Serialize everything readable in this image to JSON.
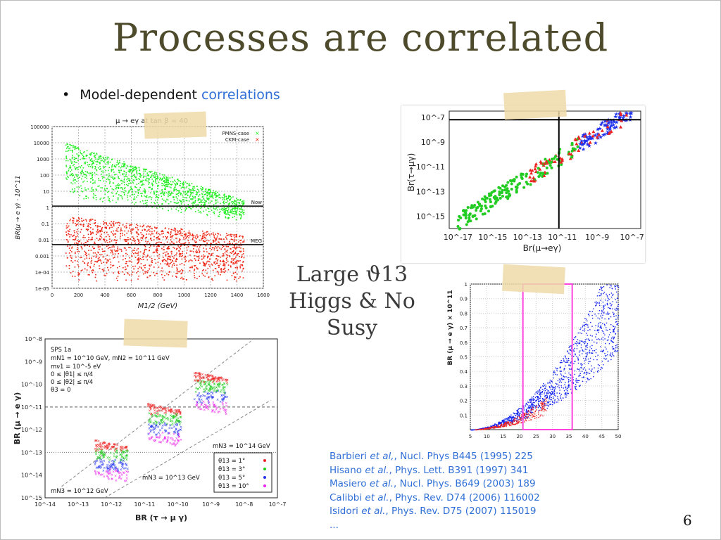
{
  "slide": {
    "title": "Processes are correlated",
    "bullet_label": "Model-dependent",
    "bullet_accent": "correlations",
    "center_line1": "Large ϑ13",
    "center_line2": "Higgs & No Susy",
    "page_number": "6",
    "references": [
      {
        "authors": "Barbieri",
        "etal": "et al,",
        "rest": ", Nucl. Phys B445 (1995) 225"
      },
      {
        "authors": "Hisano",
        "etal": "et al.",
        "rest": ", Phys. Lett. B391 (1997) 341"
      },
      {
        "authors": "Masiero",
        "etal": "et al.",
        "rest": ", Nucl. Phys. B649 (2003) 189"
      },
      {
        "authors": "Calibbi",
        "etal": "et al.",
        "rest": ",   Phys. Rev. D74 (2006) 116002"
      },
      {
        "authors": "Isidori",
        "etal": "et al.",
        "rest": ", Phys. Rev. D75 (2007) 115019"
      },
      {
        "authors": "...",
        "etal": "",
        "rest": ""
      }
    ]
  },
  "chart_data": [
    {
      "type": "scatter",
      "title": "μ → eγ at tan β = 40",
      "xlabel": "M1/2 (GeV)",
      "ylabel": "BR(μ → e γ) · 10^11",
      "xlim": [
        0,
        1600
      ],
      "x_ticks": [
        "0",
        "200",
        "400",
        "600",
        "800",
        "1000",
        "1200",
        "1400",
        "1600"
      ],
      "y_ticks": [
        "100000",
        "10000",
        "1000",
        "100",
        "10",
        "1",
        "0.1",
        "0.01",
        "0.001",
        "1e-04",
        "1e-05"
      ],
      "log_y": true,
      "legend": [
        "PMNS-case",
        "CKM-case"
      ],
      "hlines": [
        {
          "label": "Now",
          "value": 1.2
        },
        {
          "label": "MEG",
          "value": 0.005
        }
      ],
      "series": [
        {
          "name": "PMNS-case",
          "color": "#22ee22",
          "x_range": [
            100,
            1450
          ],
          "y_top": [
            10000,
            3
          ],
          "y_bottom": [
            5,
            0.15
          ]
        },
        {
          "name": "CKM-case",
          "color": "#ee2211",
          "x_range": [
            100,
            1450
          ],
          "y_top": [
            0.3,
            0.02
          ],
          "y_bottom": [
            3e-05,
            3e-05
          ]
        }
      ]
    },
    {
      "type": "scatter",
      "xlabel": "Br(μ→eγ)",
      "ylabel": "Br(τ→μγ)",
      "log_x": true,
      "log_y": true,
      "x_ticks": [
        "10^-17",
        "10^-15",
        "10^-13",
        "10^-11",
        "10^-9",
        "10^-7"
      ],
      "y_ticks": [
        "10^-7",
        "10^-9",
        "10^-11",
        "10^-13",
        "10^-15"
      ],
      "colors": [
        "#22cc22",
        "#ee2222",
        "#2233ee"
      ]
    },
    {
      "type": "scatter",
      "xlabel": "BR (τ → μ γ)",
      "ylabel": "BR (μ → e γ)",
      "log_x": true,
      "log_y": true,
      "x_ticks": [
        "10^-14",
        "10^-13",
        "10^-12",
        "10^-11",
        "10^-10",
        "10^-9",
        "10^-8",
        "10^-7"
      ],
      "y_ticks": [
        "10^-8",
        "10^-9",
        "10^-10",
        "10^-11",
        "10^-12",
        "10^-13",
        "10^-14",
        "10^-15"
      ],
      "annotations": [
        "SPS 1a",
        "mN1 = 10^10 GeV, mN2 = 10^11 GeV",
        "mν1 = 10^-5 eV",
        "0 ≤ |θ1| ≤ π/4",
        "0 ≤ |θ2| ≤ π/4",
        "θ3 = 0",
        "mN3 = 10^14 GeV",
        "mN3 = 10^13 GeV",
        "mN3 = 10^12 GeV"
      ],
      "legend": [
        {
          "name": "θ13 = 1°",
          "color": "#ee2222"
        },
        {
          "name": "θ13 = 3°",
          "color": "#22cc22"
        },
        {
          "name": "θ13 = 5°",
          "color": "#2233ee"
        },
        {
          "name": "θ13 = 10°",
          "color": "#ee22ee"
        }
      ]
    },
    {
      "type": "scatter",
      "ylabel": "BR (μ → e γ) × 10^11",
      "xlim": [
        5,
        50
      ],
      "ylim": [
        0,
        1
      ],
      "x_ticks": [
        "5",
        "10",
        "15",
        "20",
        "25",
        "30",
        "35",
        "40",
        "45",
        "50"
      ],
      "y_ticks": [
        "1",
        "0.9",
        "0.8",
        "0.7",
        "0.6",
        "0.5",
        "0.4",
        "0.3",
        "0.2",
        "0.1"
      ],
      "highlight_box": {
        "x": [
          21,
          36
        ],
        "y": [
          0,
          1
        ],
        "color": "#ff44dd"
      },
      "series": [
        {
          "name": "blue",
          "color": "#1122ee"
        },
        {
          "name": "red",
          "color": "#ee2222"
        }
      ]
    }
  ]
}
